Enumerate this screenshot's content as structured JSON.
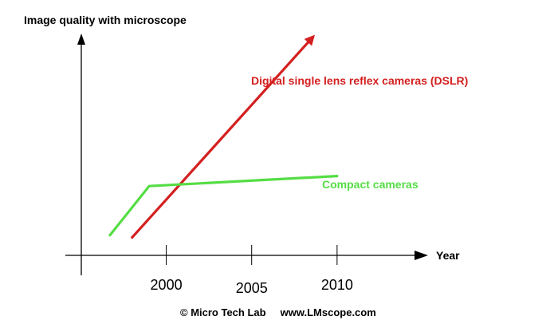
{
  "chart_data": {
    "type": "line",
    "title": "Image quality with microscope",
    "xlabel": "Year",
    "ylabel": "",
    "xlim": [
      1994,
      2015
    ],
    "ylim": [
      0,
      10
    ],
    "xticks": [
      2000,
      2005,
      2010
    ],
    "xtick_labels": [
      "2000",
      "2005",
      "2010"
    ],
    "grid": false,
    "series": [
      {
        "name": "Digital single lens reflex cameras (DSLR)",
        "color": "#d42020",
        "x": [
          1998,
          2008.5
        ],
        "y": [
          0.8,
          9.7
        ],
        "arrow_end": true
      },
      {
        "name": "Compact cameras",
        "color": "#55dd44",
        "x": [
          1996.7,
          1999,
          2010
        ],
        "y": [
          0.9,
          3.1,
          3.55
        ],
        "arrow_end": false
      }
    ]
  },
  "credit": {
    "text": "© Micro Tech Lab     www.LMscope.com"
  }
}
